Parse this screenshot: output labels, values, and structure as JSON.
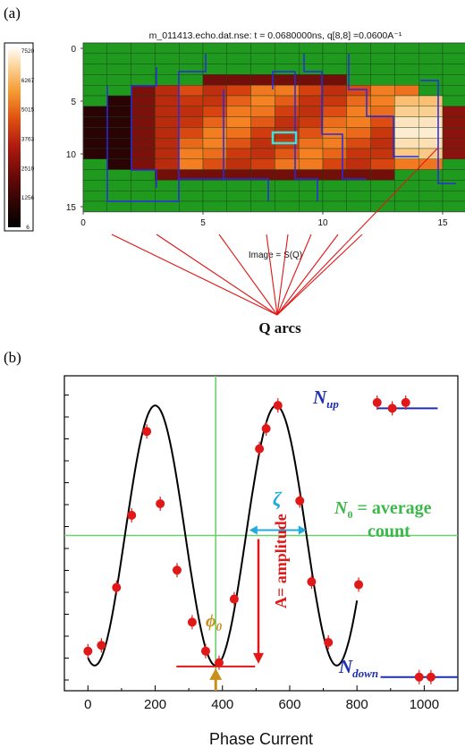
{
  "panel_a": {
    "label": "(a)",
    "title": "m_011413.echo.dat.nse: t = 0.0680000ns, q[8,8] =0.0600A⁻¹",
    "colorbar_ticks": [
      "7520",
      "6267",
      "5015",
      "3763",
      "2510",
      "1256",
      "6"
    ],
    "x_ticks": [
      "0",
      "5",
      "10",
      "15"
    ],
    "y_ticks": [
      "0",
      "5",
      "10",
      "15"
    ],
    "xlabel": "Image = S(Q)",
    "arc_label": "Q arcs"
  },
  "panel_b": {
    "label": "(b)",
    "xlabel": "Phase Current",
    "ann_nup": "N",
    "ann_nup_sub": "up",
    "ann_ndown": "N",
    "ann_ndown_sub": "down",
    "ann_n0_a": "N",
    "ann_n0_sub": "0",
    "ann_n0_b": " = average",
    "ann_n0_c": "count",
    "ann_zeta": "ζ",
    "ann_amp": "A= amplitude",
    "ann_phi": "ϕ",
    "ann_phi_sub": "0"
  },
  "colors": {
    "green_cell": "#1f9a1f",
    "grid_blue": "#2a2ae0",
    "fit_line": "#000000",
    "points": "#e01818",
    "guide": "#6bd06b",
    "nup": "#1f2fb0",
    "amp": "#e01818",
    "zeta": "#22aadd",
    "phi": "#c8901a"
  },
  "chart_data": {
    "type": "scatter",
    "xlim": [
      -70,
      1100
    ],
    "ylim": [
      0,
      1
    ],
    "x_ticks": [
      0,
      200,
      400,
      600,
      800,
      1000
    ],
    "series": [
      {
        "x": [
          0,
          40,
          85,
          130,
          175,
          215,
          265,
          310,
          350,
          390,
          435,
          510,
          530,
          565,
          630,
          665,
          715,
          805,
          860,
          905,
          945,
          985,
          1020
        ],
        "y": [
          0.1,
          0.12,
          0.32,
          0.57,
          0.86,
          0.61,
          0.38,
          0.2,
          0.1,
          0.06,
          0.28,
          0.8,
          0.87,
          0.95,
          0.62,
          0.34,
          0.13,
          0.33,
          0.96,
          0.94,
          0.96,
          0.01,
          0.01
        ]
      }
    ],
    "fit": {
      "n0": 0.5,
      "amplitude": 0.45,
      "phi0": 380,
      "period": 360
    }
  }
}
